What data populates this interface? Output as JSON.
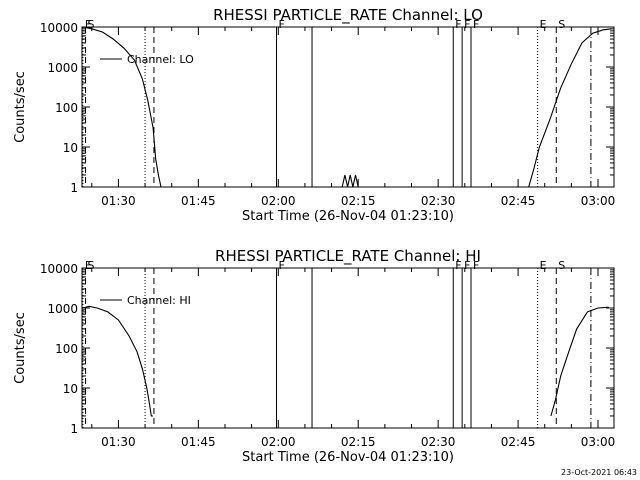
{
  "timestamp": "23-Oct-2021 06:43",
  "chart_data": [
    {
      "type": "line",
      "title": "RHESSI PARTICLE_RATE Channel: LO",
      "xlabel": "Start Time (26-Nov-04 01:23:10)",
      "ylabel": "Counts/sec",
      "y_scale": "log",
      "ylim": [
        1,
        10000
      ],
      "xlim": [
        "01:23:10",
        "03:03:00"
      ],
      "xticks": [
        "01:30",
        "01:45",
        "02:00",
        "02:15",
        "02:30",
        "02:45",
        "03:00"
      ],
      "yticks": [
        "1",
        "10",
        "100",
        "1000",
        "10000"
      ],
      "legend": "Channel: LO",
      "series": [
        {
          "name": "Channel: LO",
          "points": [
            [
              "01:23:20",
              10000
            ],
            [
              "01:25:00",
              9000
            ],
            [
              "01:27:00",
              7500
            ],
            [
              "01:29:00",
              5000
            ],
            [
              "01:31:00",
              3000
            ],
            [
              "01:33:00",
              1500
            ],
            [
              "01:34:30",
              500
            ],
            [
              "01:35:30",
              150
            ],
            [
              "01:36:30",
              30
            ],
            [
              "01:37:00",
              5
            ],
            [
              "01:37:30",
              2
            ],
            [
              "01:38:00",
              1
            ],
            null,
            [
              "02:12:00",
              1
            ],
            [
              "02:12:30",
              2
            ],
            [
              "02:13:00",
              1
            ],
            [
              "02:13:30",
              2
            ],
            [
              "02:14:00",
              1
            ],
            [
              "02:14:30",
              2
            ],
            [
              "02:15:00",
              1
            ],
            null,
            [
              "02:47:00",
              1
            ],
            [
              "02:48:00",
              3
            ],
            [
              "02:49:00",
              10
            ],
            [
              "02:51:00",
              50
            ],
            [
              "02:53:00",
              300
            ],
            [
              "02:55:00",
              1200
            ],
            [
              "02:57:00",
              4000
            ],
            [
              "02:59:00",
              7000
            ],
            [
              "03:01:00",
              8500
            ],
            [
              "03:02:30",
              9000
            ]
          ]
        }
      ],
      "markers": [
        {
          "time": "01:23:20",
          "label": "E",
          "style": "dotted"
        },
        {
          "time": "01:23:50",
          "label": "S",
          "style": "dashed"
        },
        {
          "time": "01:35:00",
          "label": "",
          "style": "dotted"
        },
        {
          "time": "01:36:40",
          "label": "",
          "style": "dashed"
        },
        {
          "time": "01:59:40",
          "label": "F",
          "style": "solid"
        },
        {
          "time": "02:06:20",
          "label": "",
          "style": "solid"
        },
        {
          "time": "02:32:50",
          "label": "F",
          "style": "solid"
        },
        {
          "time": "02:34:30",
          "label": "F",
          "style": "solid"
        },
        {
          "time": "02:36:10",
          "label": "F",
          "style": "solid"
        },
        {
          "time": "02:48:40",
          "label": "E",
          "style": "dotted"
        },
        {
          "time": "02:52:10",
          "label": "S",
          "style": "dashed"
        },
        {
          "time": "02:58:40",
          "label": "",
          "style": "dashdot"
        }
      ]
    },
    {
      "type": "line",
      "title": "RHESSI PARTICLE_RATE Channel: HI",
      "xlabel": "Start Time (26-Nov-04 01:23:10)",
      "ylabel": "Counts/sec",
      "y_scale": "log",
      "ylim": [
        1,
        10000
      ],
      "xlim": [
        "01:23:10",
        "03:03:00"
      ],
      "xticks": [
        "01:30",
        "01:45",
        "02:00",
        "02:15",
        "02:30",
        "02:45",
        "03:00"
      ],
      "yticks": [
        "1",
        "10",
        "100",
        "1000",
        "10000"
      ],
      "legend": "Channel: HI",
      "series": [
        {
          "name": "Channel: HI",
          "points": [
            [
              "01:23:20",
              1000
            ],
            [
              "01:24:30",
              1100
            ],
            [
              "01:26:00",
              1000
            ],
            [
              "01:28:00",
              800
            ],
            [
              "01:30:00",
              500
            ],
            [
              "01:32:00",
              200
            ],
            [
              "01:33:30",
              80
            ],
            [
              "01:34:30",
              30
            ],
            [
              "01:35:20",
              10
            ],
            [
              "01:35:50",
              4
            ],
            [
              "01:36:10",
              2
            ],
            [
              "01:36:30",
              2
            ],
            null,
            [
              "02:51:10",
              2
            ],
            [
              "02:52:00",
              5
            ],
            [
              "02:53:00",
              20
            ],
            [
              "02:54:30",
              80
            ],
            [
              "02:56:00",
              300
            ],
            [
              "02:58:00",
              800
            ],
            [
              "03:00:00",
              1000
            ],
            [
              "03:02:00",
              1050
            ]
          ]
        }
      ],
      "markers": [
        {
          "time": "01:23:20",
          "label": "E",
          "style": "dotted"
        },
        {
          "time": "01:23:50",
          "label": "S",
          "style": "dashed"
        },
        {
          "time": "01:35:00",
          "label": "",
          "style": "dotted"
        },
        {
          "time": "01:36:40",
          "label": "",
          "style": "dashed"
        },
        {
          "time": "01:59:40",
          "label": "F",
          "style": "solid"
        },
        {
          "time": "02:06:20",
          "label": "",
          "style": "solid"
        },
        {
          "time": "02:32:50",
          "label": "F",
          "style": "solid"
        },
        {
          "time": "02:34:30",
          "label": "F",
          "style": "solid"
        },
        {
          "time": "02:36:10",
          "label": "F",
          "style": "solid"
        },
        {
          "time": "02:48:40",
          "label": "E",
          "style": "dotted"
        },
        {
          "time": "02:52:10",
          "label": "S",
          "style": "dashed"
        },
        {
          "time": "02:58:40",
          "label": "",
          "style": "dashdot"
        }
      ]
    }
  ]
}
